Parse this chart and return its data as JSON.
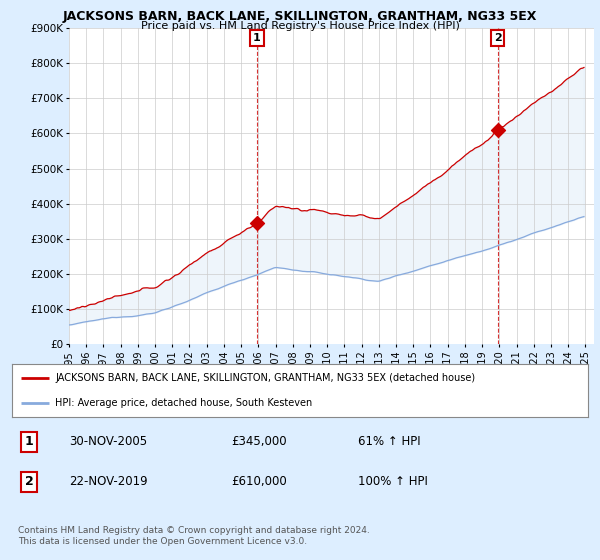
{
  "title": "JACKSONS BARN, BACK LANE, SKILLINGTON, GRANTHAM, NG33 5EX",
  "subtitle": "Price paid vs. HM Land Registry's House Price Index (HPI)",
  "ylim": [
    0,
    900000
  ],
  "yticks": [
    0,
    100000,
    200000,
    300000,
    400000,
    500000,
    600000,
    700000,
    800000,
    900000
  ],
  "ytick_labels": [
    "£0",
    "£100K",
    "£200K",
    "£300K",
    "£400K",
    "£500K",
    "£600K",
    "£700K",
    "£800K",
    "£900K"
  ],
  "xlim_start": 1995.0,
  "xlim_end": 2025.5,
  "property_color": "#cc0000",
  "hpi_color": "#88aadd",
  "fill_color": "#d0e4f5",
  "bg_color": "#ddeeff",
  "plot_bg": "#ffffff",
  "sale1_year": 2005.92,
  "sale1_price": 345000,
  "sale2_year": 2019.9,
  "sale2_price": 610000,
  "legend_property": "JACKSONS BARN, BACK LANE, SKILLINGTON, GRANTHAM, NG33 5EX (detached house)",
  "legend_hpi": "HPI: Average price, detached house, South Kesteven",
  "table_row1_num": "1",
  "table_row1_date": "30-NOV-2005",
  "table_row1_price": "£345,000",
  "table_row1_hpi": "61% ↑ HPI",
  "table_row2_num": "2",
  "table_row2_date": "22-NOV-2019",
  "table_row2_price": "£610,000",
  "table_row2_hpi": "100% ↑ HPI",
  "footer": "Contains HM Land Registry data © Crown copyright and database right 2024.\nThis data is licensed under the Open Government Licence v3.0."
}
